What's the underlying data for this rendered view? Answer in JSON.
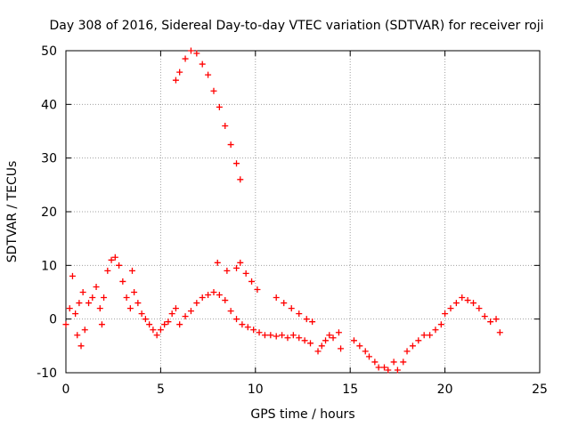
{
  "chart_data": {
    "type": "scatter",
    "title": "Day 308 of 2016, Sidereal Day-to-day VTEC variation (SDTVAR) for receiver roji",
    "xlabel": "GPS time / hours",
    "ylabel": "SDTVAR / TECUs",
    "xlim": [
      0,
      25
    ],
    "ylim": [
      -10,
      50
    ],
    "xticks": [
      0,
      5,
      10,
      15,
      20,
      25
    ],
    "yticks": [
      -10,
      0,
      10,
      20,
      30,
      40,
      50
    ],
    "grid": true,
    "marker": "plus",
    "color": "#ff0000",
    "series": [
      {
        "name": "sdtvar",
        "points": [
          [
            0.0,
            -1
          ],
          [
            0.2,
            2
          ],
          [
            0.35,
            8
          ],
          [
            0.5,
            1
          ],
          [
            0.6,
            -3
          ],
          [
            0.8,
            -5
          ],
          [
            1.0,
            -2
          ],
          [
            0.7,
            3
          ],
          [
            0.9,
            5
          ],
          [
            1.2,
            3
          ],
          [
            1.4,
            4
          ],
          [
            1.6,
            6
          ],
          [
            1.8,
            2
          ],
          [
            1.9,
            -1
          ],
          [
            2.0,
            4
          ],
          [
            2.2,
            9
          ],
          [
            2.4,
            11
          ],
          [
            2.6,
            11.5
          ],
          [
            2.8,
            10
          ],
          [
            3.0,
            7
          ],
          [
            3.2,
            4
          ],
          [
            3.4,
            2
          ],
          [
            3.5,
            9
          ],
          [
            3.6,
            5
          ],
          [
            3.8,
            3
          ],
          [
            4.0,
            1
          ],
          [
            4.2,
            0
          ],
          [
            4.4,
            -1
          ],
          [
            4.6,
            -2
          ],
          [
            4.8,
            -3
          ],
          [
            5.0,
            -2
          ],
          [
            5.2,
            -1
          ],
          [
            5.4,
            -0.5
          ],
          [
            5.6,
            1
          ],
          [
            5.8,
            2
          ],
          [
            6.0,
            -1
          ],
          [
            6.3,
            0.5
          ],
          [
            6.6,
            1.5
          ],
          [
            6.9,
            3
          ],
          [
            7.2,
            4
          ],
          [
            7.5,
            4.5
          ],
          [
            7.8,
            5
          ],
          [
            8.1,
            4.5
          ],
          [
            8.4,
            3.5
          ],
          [
            8.7,
            1.5
          ],
          [
            9.0,
            0
          ],
          [
            9.3,
            -1
          ],
          [
            9.6,
            -1.5
          ],
          [
            9.9,
            -2
          ],
          [
            10.2,
            -2.5
          ],
          [
            10.5,
            -3
          ],
          [
            10.8,
            -3
          ],
          [
            11.1,
            -3.2
          ],
          [
            11.4,
            -3
          ],
          [
            11.7,
            -3.5
          ],
          [
            12.0,
            -3
          ],
          [
            12.3,
            -3.5
          ],
          [
            12.6,
            -4
          ],
          [
            12.9,
            -4.5
          ],
          [
            8.0,
            10.5
          ],
          [
            8.5,
            9
          ],
          [
            9.0,
            9.5
          ],
          [
            9.2,
            10.5
          ],
          [
            9.5,
            8.5
          ],
          [
            9.8,
            7
          ],
          [
            10.1,
            5.5
          ],
          [
            11.1,
            4
          ],
          [
            11.5,
            3
          ],
          [
            11.9,
            2
          ],
          [
            12.3,
            1
          ],
          [
            12.7,
            0
          ],
          [
            13.0,
            -0.5
          ],
          [
            13.3,
            -6
          ],
          [
            13.5,
            -5
          ],
          [
            13.7,
            -4
          ],
          [
            13.9,
            -3
          ],
          [
            14.1,
            -3.5
          ],
          [
            14.4,
            -2.5
          ],
          [
            14.5,
            -5.5
          ],
          [
            15.2,
            -4
          ],
          [
            15.5,
            -5
          ],
          [
            15.8,
            -6
          ],
          [
            16.0,
            -7
          ],
          [
            16.3,
            -8
          ],
          [
            16.5,
            -9
          ],
          [
            16.8,
            -9
          ],
          [
            17.0,
            -9.5
          ],
          [
            17.3,
            -8
          ],
          [
            17.5,
            -9.5
          ],
          [
            17.8,
            -8
          ],
          [
            18.0,
            -6
          ],
          [
            18.3,
            -5
          ],
          [
            18.6,
            -4
          ],
          [
            18.9,
            -3
          ],
          [
            19.2,
            -3
          ],
          [
            19.5,
            -2
          ],
          [
            19.8,
            -1
          ],
          [
            20.0,
            1
          ],
          [
            20.3,
            2
          ],
          [
            20.6,
            3
          ],
          [
            20.9,
            4
          ],
          [
            21.2,
            3.5
          ],
          [
            21.5,
            3
          ],
          [
            21.8,
            2
          ],
          [
            22.1,
            0.5
          ],
          [
            22.4,
            -0.5
          ],
          [
            22.7,
            0
          ],
          [
            22.9,
            -2.5
          ],
          [
            5.8,
            44.5
          ],
          [
            6.0,
            46
          ],
          [
            6.3,
            48.5
          ],
          [
            6.6,
            50
          ],
          [
            6.9,
            49.5
          ],
          [
            7.2,
            47.5
          ],
          [
            7.5,
            45.5
          ],
          [
            7.8,
            42.5
          ],
          [
            8.1,
            39.5
          ],
          [
            8.4,
            36
          ],
          [
            8.7,
            32.5
          ],
          [
            9.0,
            29
          ],
          [
            9.2,
            26
          ]
        ]
      }
    ]
  }
}
